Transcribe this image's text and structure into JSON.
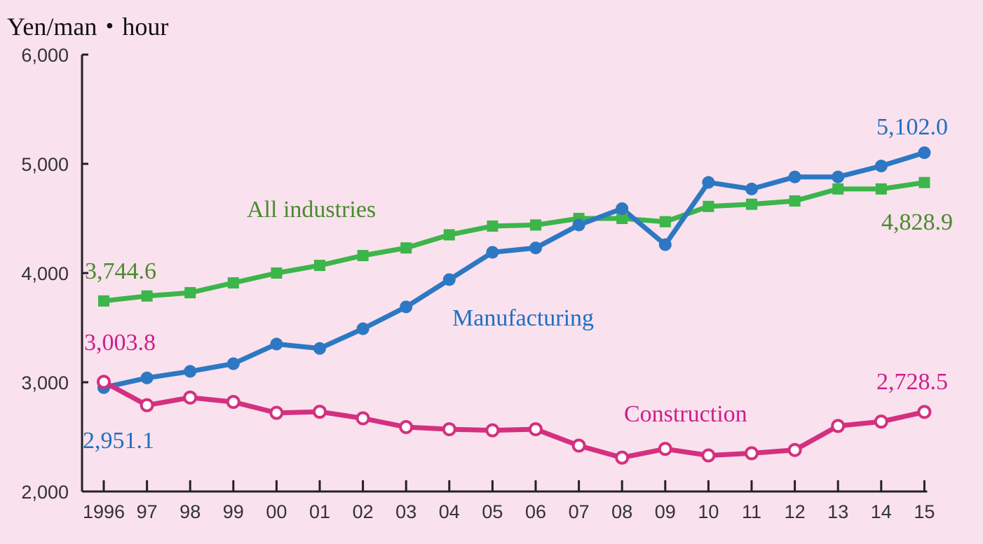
{
  "chart_data": {
    "type": "line",
    "ylabel": "Yen/man・hour",
    "ylim": [
      2000,
      6000
    ],
    "yticks": [
      "2,000",
      "3,000",
      "4,000",
      "5,000",
      "6,000"
    ],
    "categories": [
      "1996",
      "97",
      "98",
      "99",
      "00",
      "01",
      "02",
      "03",
      "04",
      "05",
      "06",
      "07",
      "08",
      "09",
      "10",
      "11",
      "12",
      "13",
      "14",
      "15"
    ],
    "series": [
      {
        "name": "All industries",
        "color": "#4a8a2e",
        "line_color": "#3cb54a",
        "marker": "square",
        "values": [
          3744.6,
          3790,
          3820,
          3910,
          4000,
          4070,
          4160,
          4230,
          4350,
          4430,
          4440,
          4500,
          4500,
          4470,
          4610,
          4630,
          4660,
          4770,
          4770,
          4828.9
        ]
      },
      {
        "name": "Manufacturing",
        "color": "#1f6fbf",
        "line_color": "#2c78c2",
        "marker": "circle-filled",
        "values": [
          2951.1,
          3040,
          3100,
          3170,
          3350,
          3310,
          3490,
          3690,
          3940,
          4190,
          4230,
          4440,
          4590,
          4260,
          4830,
          4770,
          4880,
          4880,
          4980,
          5102.0
        ]
      },
      {
        "name": "Construction",
        "color": "#cc1f8c",
        "line_color": "#d4307f",
        "marker": "circle-open",
        "values": [
          3003.8,
          2790,
          2860,
          2820,
          2720,
          2730,
          2670,
          2590,
          2570,
          2560,
          2570,
          2420,
          2310,
          2390,
          2330,
          2350,
          2380,
          2600,
          2640,
          2728.5
        ]
      }
    ],
    "annotations": {
      "all_start": "3,744.6",
      "all_end": "4,828.9",
      "manu_start": "2,951.1",
      "manu_end": "5,102.0",
      "cons_start": "3,003.8",
      "cons_end": "2,728.5"
    }
  }
}
